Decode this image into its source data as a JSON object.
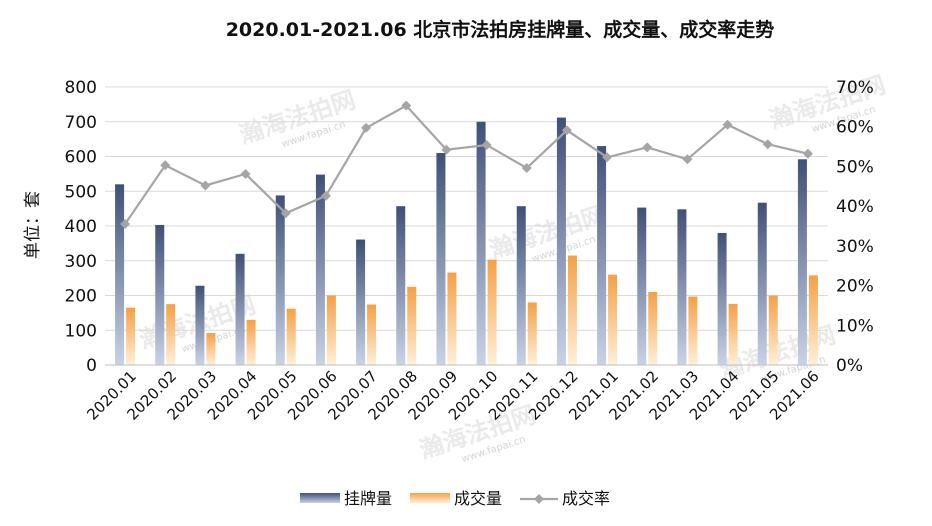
{
  "chart_data": {
    "type": "bar",
    "title": "2020.01-2021.06 北京市法拍房挂牌量、成交量、成交率走势",
    "ylabel": "单位：套",
    "categories": [
      "2020.01",
      "2020.02",
      "2020.03",
      "2020.04",
      "2020.05",
      "2020.06",
      "2020.07",
      "2020.08",
      "2020.09",
      "2020.10",
      "2020.11",
      "2020.12",
      "2021.01",
      "2021.02",
      "2021.03",
      "2021.04",
      "2021.05",
      "2021.06"
    ],
    "series": [
      {
        "name": "挂牌量",
        "kind": "bar",
        "axis": "left",
        "color": "#5b6f99",
        "values": [
          520,
          403,
          228,
          320,
          488,
          548,
          361,
          457,
          610,
          700,
          457,
          712,
          630,
          453,
          448,
          380,
          467,
          592
        ]
      },
      {
        "name": "成交量",
        "kind": "bar",
        "axis": "left",
        "color": "#f08a2c",
        "values": [
          165,
          175,
          92,
          130,
          162,
          200,
          174,
          225,
          266,
          303,
          180,
          315,
          260,
          210,
          197,
          176,
          200,
          258
        ]
      },
      {
        "name": "成交率",
        "kind": "line",
        "axis": "right",
        "color": "#a5a5a5",
        "values": [
          35.5,
          50.3,
          45.2,
          48.1,
          38.2,
          42.6,
          59.7,
          65.3,
          54.2,
          55.4,
          49.6,
          59.1,
          52.3,
          54.8,
          51.8,
          60.5,
          55.6,
          53.2
        ]
      }
    ],
    "y_left": {
      "min": 0,
      "max": 800,
      "ticks": [
        "0",
        "100",
        "200",
        "300",
        "400",
        "500",
        "600",
        "700",
        "800"
      ]
    },
    "y_right": {
      "min": 0,
      "max": 70,
      "ticks": [
        "0%",
        "10%",
        "20%",
        "30%",
        "40%",
        "50%",
        "60%",
        "70%"
      ]
    },
    "grid": true,
    "legend_position": "bottom-center",
    "legend": [
      {
        "label": "挂牌量",
        "kind": "bar",
        "color": "#5b6f99"
      },
      {
        "label": "成交量",
        "kind": "bar",
        "color": "#f08a2c"
      },
      {
        "label": "成交率",
        "kind": "line",
        "color": "#a5a5a5"
      }
    ]
  },
  "watermark": {
    "text": "瀚海法拍网",
    "url": "www.fapai.cn"
  }
}
